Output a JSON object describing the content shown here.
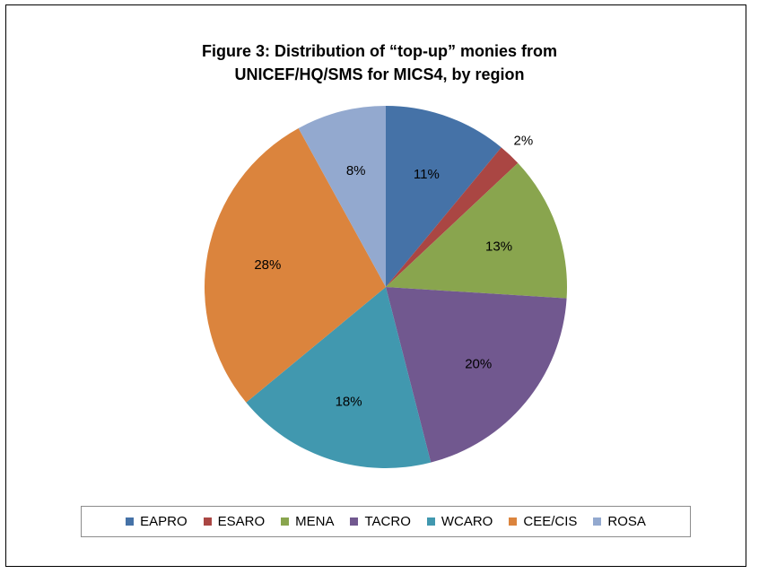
{
  "chart_data": {
    "type": "pie",
    "title": "Figure 3:  Distribution of “top-up” monies from\nUNICEF/HQ/SMS for MICS4, by region",
    "categories": [
      "EAPRO",
      "ESARO",
      "MENA",
      "TACRO",
      "WCARO",
      "CEE/CIS",
      "ROSA"
    ],
    "values": [
      11,
      2,
      13,
      20,
      18,
      28,
      8
    ],
    "labels": [
      "11%",
      "2%",
      "13%",
      "20%",
      "18%",
      "28%",
      "8%"
    ],
    "colors": [
      "#4572a7",
      "#aa4643",
      "#89a54e",
      "#71588f",
      "#4198af",
      "#db843d",
      "#93a9cf"
    ],
    "legend": "bottom",
    "start": "top, clockwise"
  }
}
